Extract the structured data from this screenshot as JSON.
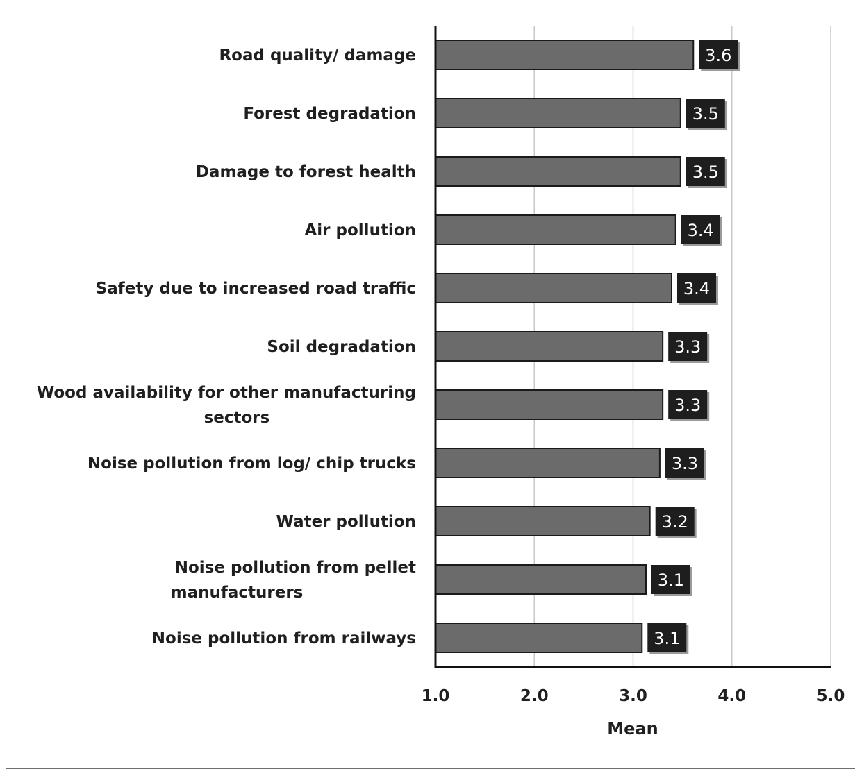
{
  "chart_data": {
    "type": "bar",
    "orientation": "horizontal",
    "categories": [
      "Road quality/ damage",
      "Forest degradation",
      "Damage to forest health",
      "Air pollution",
      "Safety due to increased road traffic",
      "Soil degradation",
      "Wood availability for other manufacturing sectors",
      "Noise pollution from log/ chip trucks",
      "Water pollution",
      "Noise pollution from pellet manufacturers",
      "Noise pollution from railways"
    ],
    "values": [
      3.61,
      3.48,
      3.48,
      3.43,
      3.39,
      3.3,
      3.3,
      3.27,
      3.17,
      3.13,
      3.09
    ],
    "data_labels": [
      "3.6",
      "3.5",
      "3.5",
      "3.4",
      "3.4",
      "3.3",
      "3.3",
      "3.3",
      "3.2",
      "3.1",
      "3.1"
    ],
    "title": "",
    "xlabel": "Mean",
    "ylabel": "",
    "xlim": [
      1.0,
      5.0
    ],
    "x_ticks": [
      "1.0",
      "2.0",
      "3.0",
      "4.0",
      "5.0"
    ],
    "grid": "vertical",
    "legend": "none",
    "colors": {
      "bar": "#6b6b6b",
      "bar_edge": "#1a1a1a",
      "label_bg": "#1e1e1e",
      "gridline": "#c8c8c8"
    }
  }
}
